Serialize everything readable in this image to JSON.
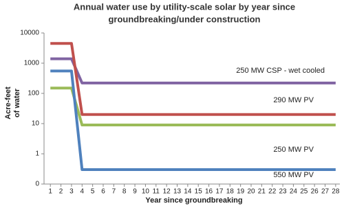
{
  "chart_data": {
    "type": "line",
    "title": [
      "Annual water use by utility-scale solar by year since",
      "groundbreaking/under construction"
    ],
    "y_label": [
      "Acre-feet",
      "of water"
    ],
    "x_label": "Year since groundbreaking",
    "yscale": "log",
    "ylim": [
      0.1,
      10000
    ],
    "yticks": [
      {
        "value": 0.1,
        "label": "0"
      },
      1,
      10,
      100,
      1000,
      10000
    ],
    "xlim": [
      0.4,
      28.4
    ],
    "xticks": [
      1,
      2,
      3,
      4,
      5,
      6,
      7,
      8,
      9,
      10,
      11,
      12,
      13,
      14,
      15,
      16,
      17,
      18,
      19,
      20,
      21,
      22,
      23,
      24,
      25,
      26,
      27,
      28
    ],
    "x": [
      1,
      2,
      3,
      4,
      5,
      6,
      7,
      8,
      9,
      10,
      11,
      12,
      13,
      14,
      15,
      16,
      17,
      18,
      19,
      20,
      21,
      22,
      23,
      24,
      25,
      26,
      27,
      28
    ],
    "series": [
      {
        "name": "250 MW CSP - wet cooled",
        "color": "#8064a2",
        "values": [
          1400,
          1400,
          1400,
          220,
          220,
          220,
          220,
          220,
          220,
          220,
          220,
          220,
          220,
          220,
          220,
          220,
          220,
          220,
          220,
          220,
          220,
          220,
          220,
          220,
          220,
          220,
          220,
          220
        ]
      },
      {
        "name": "290 MW PV",
        "color": "#c0504d",
        "values": [
          4500,
          4500,
          4500,
          20,
          20,
          20,
          20,
          20,
          20,
          20,
          20,
          20,
          20,
          20,
          20,
          20,
          20,
          20,
          20,
          20,
          20,
          20,
          20,
          20,
          20,
          20,
          20,
          20
        ]
      },
      {
        "name": "250 MW PV",
        "color": "#9bbb59",
        "values": [
          150,
          150,
          150,
          9,
          9,
          9,
          9,
          9,
          9,
          9,
          9,
          9,
          9,
          9,
          9,
          9,
          9,
          9,
          9,
          9,
          9,
          9,
          9,
          9,
          9,
          9,
          9,
          9
        ]
      },
      {
        "name": "550 MW PV",
        "color": "#4f81bd",
        "values": [
          550,
          550,
          550,
          0.3,
          0.3,
          0.3,
          0.3,
          0.3,
          0.3,
          0.3,
          0.3,
          0.3,
          0.3,
          0.3,
          0.3,
          0.3,
          0.3,
          0.3,
          0.3,
          0.3,
          0.3,
          0.3,
          0.3,
          0.3,
          0.3,
          0.3,
          0.3,
          0.3
        ]
      }
    ]
  }
}
